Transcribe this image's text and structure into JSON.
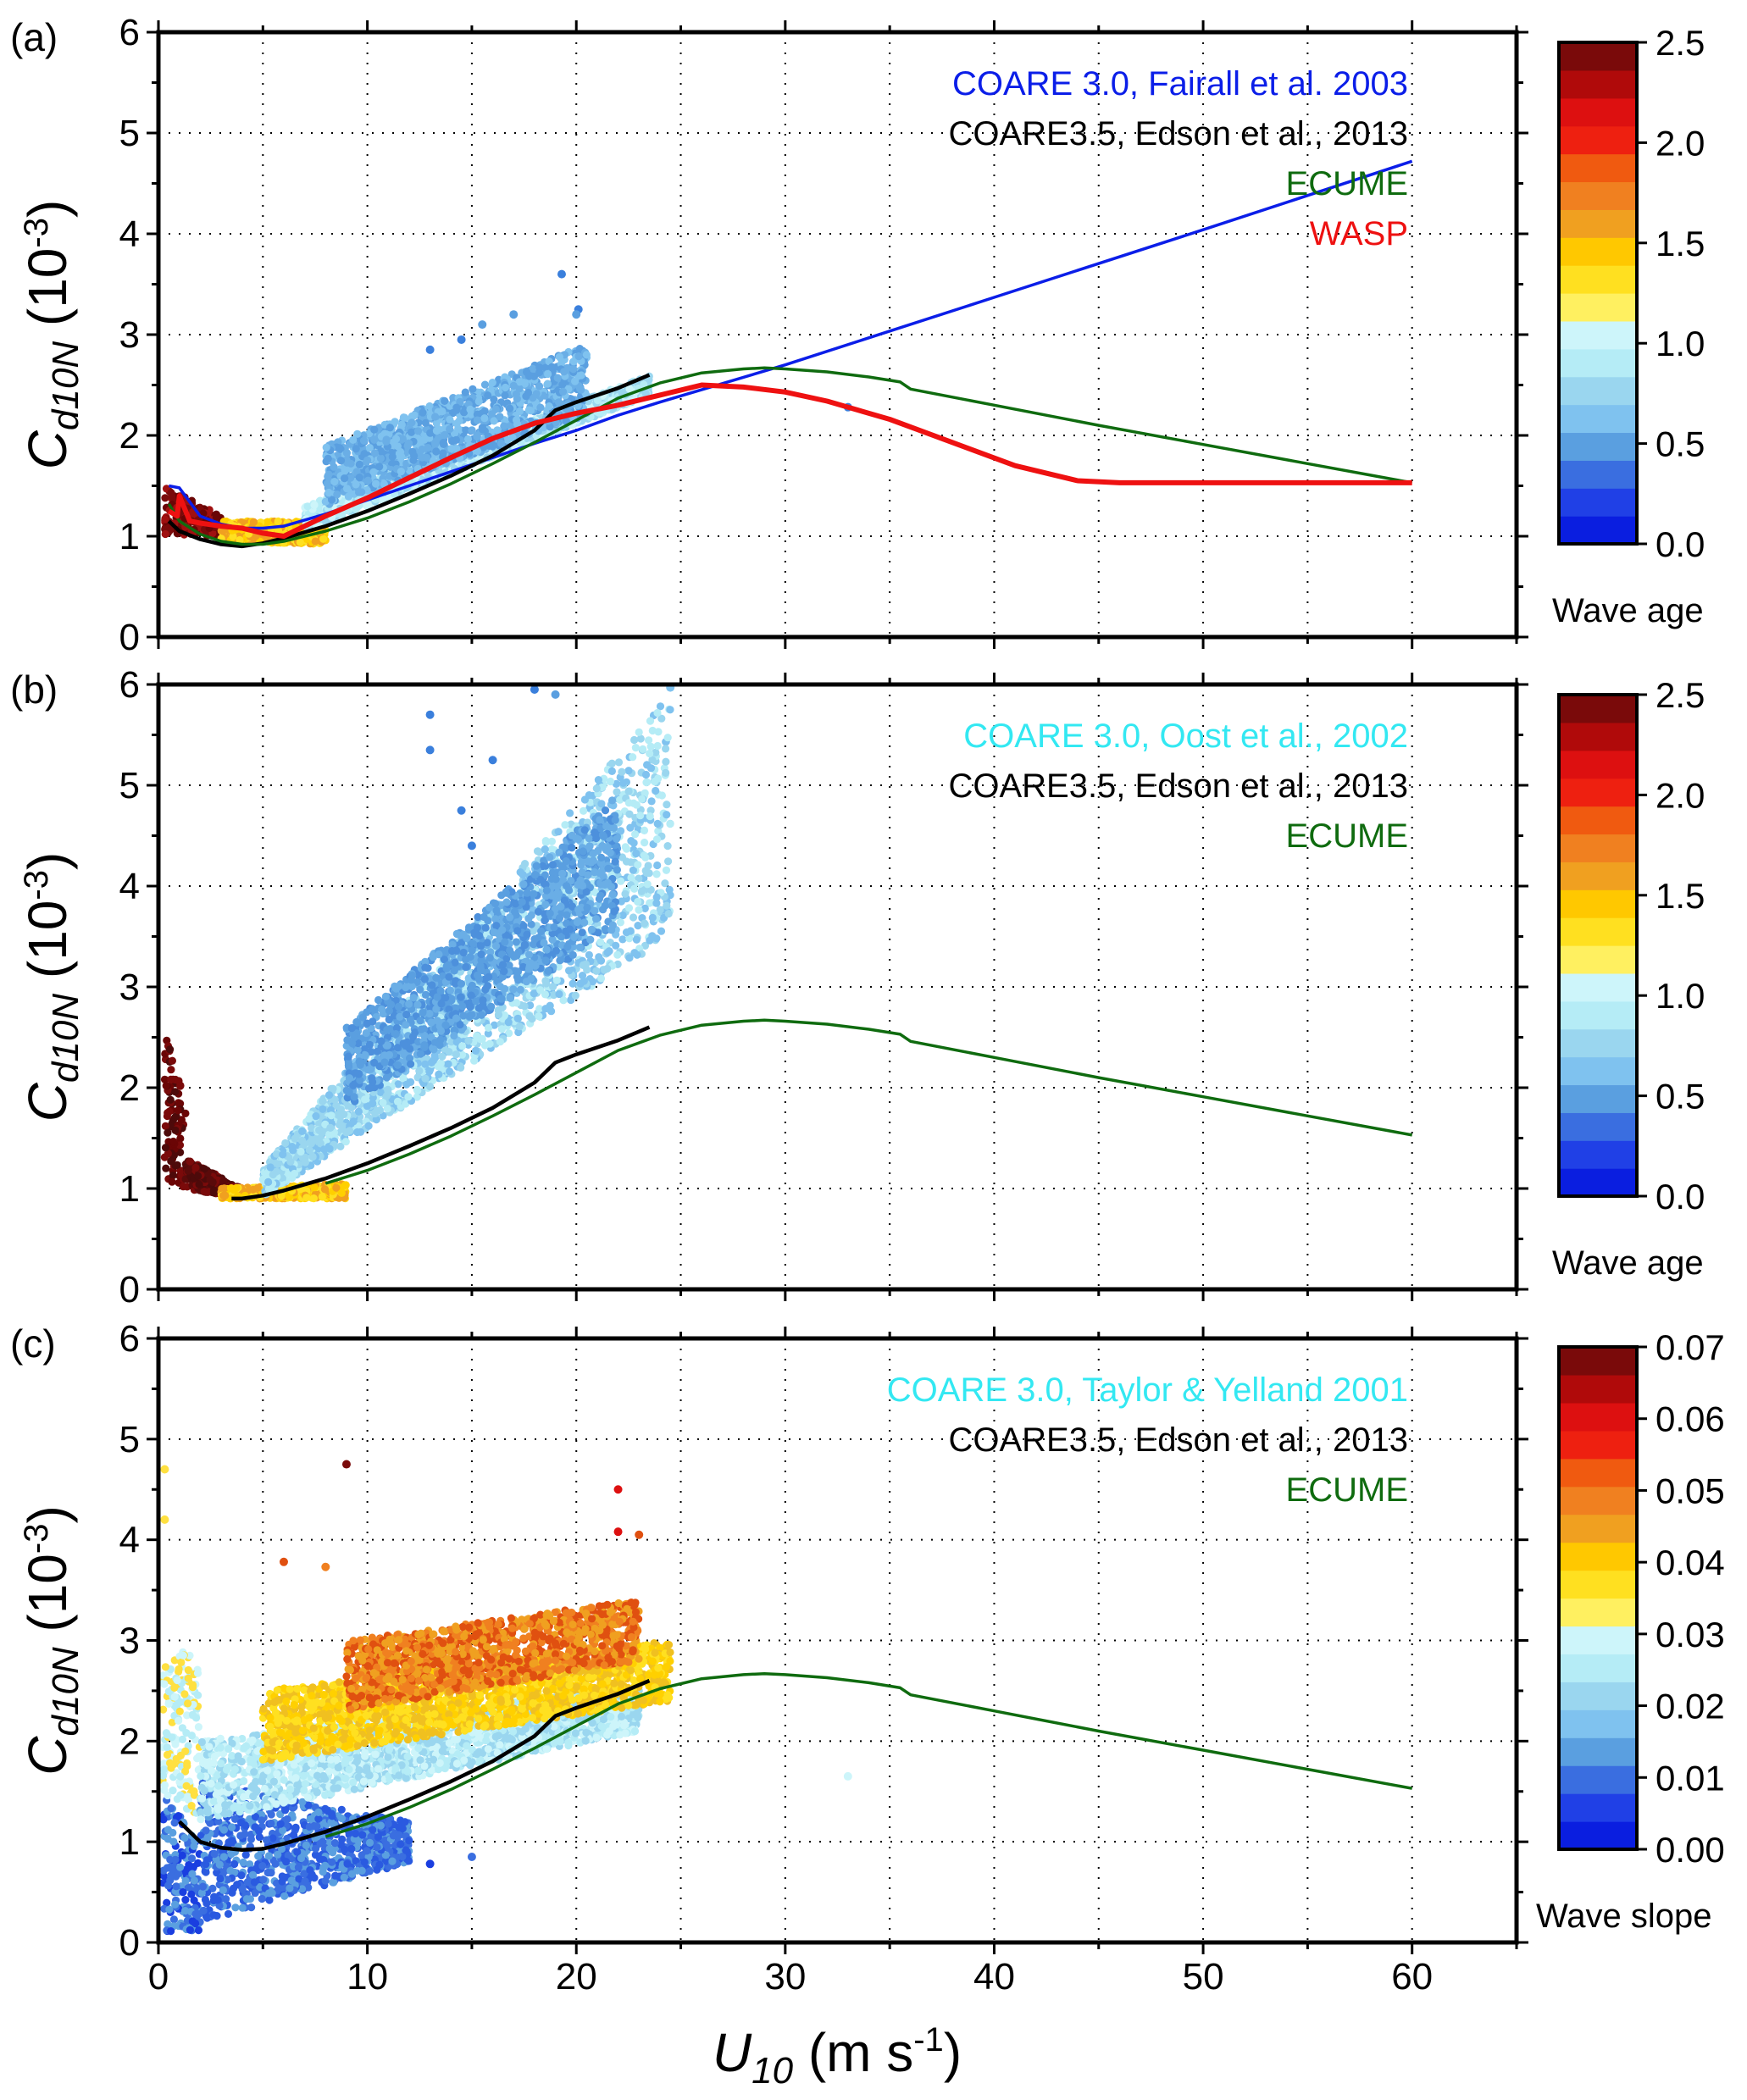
{
  "figure": {
    "x_axis_label": "U",
    "x_axis_label_sub": "10",
    "x_axis_label_units_pre": " (m s",
    "x_axis_label_units_sup": "-1",
    "x_axis_label_units_post": ")",
    "y_axis_label": "C",
    "y_axis_label_sub": "d10N",
    "y_axis_label_units_pre": " (10",
    "y_axis_label_units_sup": "-3",
    "y_axis_label_units_post": ")",
    "x_ticks": [
      "0",
      "10",
      "20",
      "30",
      "40",
      "50",
      "60"
    ],
    "y_ticks": [
      "0",
      "1",
      "2",
      "3",
      "4",
      "5",
      "6"
    ]
  },
  "chart_data": [
    {
      "panel": "(a)",
      "type": "scatter",
      "xlim": [
        0,
        65
      ],
      "ylim": [
        0,
        6
      ],
      "grid": true,
      "legend": [
        {
          "label": "COARE 3.0, Fairall et al. 2003",
          "color": "#0b1ee8"
        },
        {
          "label": "COARE3.5, Edson et al., 2013",
          "color": "#000000"
        },
        {
          "label": "ECUME",
          "color": "#0f6b0f"
        },
        {
          "label": "WASP",
          "color": "#ee1111"
        }
      ],
      "colorbar": {
        "label": "Wave age",
        "range": [
          0,
          2.5
        ],
        "ticks": [
          "0.0",
          "0.5",
          "1.0",
          "1.5",
          "2.0",
          "2.5"
        ]
      },
      "scatter_clouds": [
        {
          "x_range": [
            0.3,
            3.0
          ],
          "lower": [
            1.02,
            1.0
          ],
          "upper": [
            1.5,
            1.2
          ],
          "colors": [
            "#7a0a0a",
            "#a01010",
            "#6a0505"
          ],
          "note": "calm-wind high wave age"
        },
        {
          "x_range": [
            3.0,
            8.0
          ],
          "lower": [
            0.95,
            0.92
          ],
          "upper": [
            1.15,
            1.15
          ],
          "colors": [
            "#f0a020",
            "#ffe020",
            "#ffd000"
          ]
        },
        {
          "x_range": [
            7.0,
            23.5
          ],
          "lower": [
            1.05,
            2.4
          ],
          "upper": [
            1.3,
            2.6
          ],
          "colors": [
            "#b5ecf6",
            "#cdf5fa",
            "#9ad6ef"
          ]
        },
        {
          "x_range": [
            8.0,
            20.5
          ],
          "lower": [
            1.3,
            2.2
          ],
          "upper": [
            1.9,
            2.9
          ],
          "colors": [
            "#6aaee6",
            "#5a9fe0",
            "#7fc2ef"
          ]
        }
      ],
      "scatter_outliers": [
        {
          "x": 19.3,
          "y": 3.6,
          "color": "#3a7fdc"
        },
        {
          "x": 20.1,
          "y": 3.25,
          "color": "#3a7fdc"
        },
        {
          "x": 20.0,
          "y": 3.2,
          "color": "#5a9fe0"
        },
        {
          "x": 17.0,
          "y": 3.2,
          "color": "#5a9fe0"
        },
        {
          "x": 14.5,
          "y": 2.95,
          "color": "#3a7fdc"
        },
        {
          "x": 15.5,
          "y": 3.1,
          "color": "#5a9fe0"
        },
        {
          "x": 13.0,
          "y": 2.85,
          "color": "#3a7fdc"
        },
        {
          "x": 33.0,
          "y": 2.28,
          "color": "#3a7fdc"
        }
      ],
      "series": [
        {
          "name": "COARE 3.0, Fairall et al. 2003",
          "color": "#0b1ee8",
          "x": [
            0.5,
            1,
            2,
            3,
            4,
            5,
            6,
            8,
            10,
            12,
            14,
            16,
            18,
            20,
            22,
            24,
            30,
            40,
            50,
            60
          ],
          "y": [
            1.5,
            1.48,
            1.2,
            1.12,
            1.08,
            1.08,
            1.1,
            1.22,
            1.36,
            1.5,
            1.64,
            1.78,
            1.92,
            2.05,
            2.2,
            2.33,
            2.7,
            3.37,
            4.04,
            4.72
          ]
        },
        {
          "name": "COARE3.5, Edson et al., 2013",
          "color": "#000000",
          "x": [
            0.5,
            1,
            2,
            3,
            4,
            5,
            6,
            8,
            10,
            12,
            14,
            16,
            18,
            19,
            20,
            22,
            23.5
          ],
          "y": [
            1.15,
            1.05,
            0.97,
            0.92,
            0.9,
            0.93,
            0.98,
            1.1,
            1.25,
            1.42,
            1.6,
            1.8,
            2.05,
            2.25,
            2.33,
            2.47,
            2.6
          ]
        },
        {
          "name": "ECUME",
          "color": "#0f6b0f",
          "x": [
            0.5,
            1,
            2,
            3,
            4,
            5,
            6,
            8,
            10,
            12,
            14,
            16,
            18,
            20,
            22,
            24,
            26,
            28,
            29,
            30,
            32,
            34,
            35.5,
            36,
            40,
            45,
            50,
            55,
            60
          ],
          "y": [
            1.32,
            1.15,
            1.02,
            0.95,
            0.92,
            0.92,
            0.95,
            1.05,
            1.18,
            1.34,
            1.52,
            1.72,
            1.93,
            2.15,
            2.37,
            2.52,
            2.62,
            2.66,
            2.67,
            2.66,
            2.63,
            2.58,
            2.53,
            2.46,
            2.3,
            2.1,
            1.91,
            1.72,
            1.53
          ]
        },
        {
          "name": "WASP",
          "color": "#ee1111",
          "x": [
            0.5,
            0.9,
            1.0,
            1.5,
            2,
            3,
            4,
            5,
            6,
            7,
            8,
            10,
            12,
            14,
            16,
            18,
            20,
            22,
            24,
            26,
            28,
            30,
            32,
            35,
            38,
            41,
            44,
            46,
            50,
            55,
            60
          ],
          "y": [
            1.25,
            1.2,
            1.4,
            1.15,
            1.13,
            1.1,
            1.08,
            1.03,
            1.0,
            1.1,
            1.2,
            1.38,
            1.58,
            1.78,
            1.97,
            2.12,
            2.22,
            2.3,
            2.4,
            2.5,
            2.48,
            2.43,
            2.34,
            2.16,
            1.93,
            1.7,
            1.55,
            1.53,
            1.53,
            1.53,
            1.53
          ]
        }
      ]
    },
    {
      "panel": "(b)",
      "type": "scatter",
      "xlim": [
        0,
        65
      ],
      "ylim": [
        0,
        6
      ],
      "grid": true,
      "legend": [
        {
          "label": "COARE 3.0, Oost et al., 2002",
          "color": "#33e8f2"
        },
        {
          "label": "COARE3.5, Edson et al., 2013",
          "color": "#000000"
        },
        {
          "label": "ECUME",
          "color": "#0f6b0f"
        }
      ],
      "colorbar": {
        "label": "Wave age",
        "range": [
          0,
          2.5
        ],
        "ticks": [
          "0.0",
          "0.5",
          "1.0",
          "1.5",
          "2.0",
          "2.5"
        ]
      },
      "scatter_clouds": [
        {
          "x_range": [
            0.3,
            1.3
          ],
          "lower": [
            1.1,
            1.0
          ],
          "upper": [
            2.55,
            1.9
          ],
          "colors": [
            "#6a0505",
            "#7a0a0a",
            "#4d0a0a"
          ]
        },
        {
          "x_range": [
            1.3,
            4.0
          ],
          "lower": [
            1.0,
            0.9
          ],
          "upper": [
            1.3,
            1.0
          ],
          "colors": [
            "#5a0a0a",
            "#7a0a0a",
            "#4d0a0a"
          ]
        },
        {
          "x_range": [
            3.0,
            9.0
          ],
          "lower": [
            0.9,
            0.9
          ],
          "upper": [
            1.0,
            1.05
          ],
          "colors": [
            "#f0a020",
            "#ffe020",
            "#ffd000"
          ]
        },
        {
          "x_range": [
            5.0,
            24.5
          ],
          "lower": [
            0.92,
            3.5
          ],
          "upper": [
            1.2,
            5.9
          ],
          "colors": [
            "#b5ecf6",
            "#9ad6ef",
            "#7fc2ef"
          ]
        },
        {
          "x_range": [
            9.0,
            22.0
          ],
          "lower": [
            1.8,
            3.6
          ],
          "upper": [
            2.6,
            4.9
          ],
          "colors": [
            "#5a9fe0",
            "#6aaee6",
            "#4d90dc"
          ]
        }
      ],
      "scatter_outliers": [
        {
          "x": 13.0,
          "y": 5.7,
          "color": "#3a7fdc"
        },
        {
          "x": 13.0,
          "y": 5.35,
          "color": "#3a7fdc"
        },
        {
          "x": 18.0,
          "y": 5.95,
          "color": "#3a7fdc"
        },
        {
          "x": 19.0,
          "y": 5.9,
          "color": "#5a9fe0"
        },
        {
          "x": 24.5,
          "y": 5.97,
          "color": "#7fc2ef"
        },
        {
          "x": 16.0,
          "y": 5.25,
          "color": "#3a7fdc"
        },
        {
          "x": 14.5,
          "y": 4.75,
          "color": "#3a7fdc"
        },
        {
          "x": 15.0,
          "y": 4.4,
          "color": "#3a7fdc"
        }
      ],
      "series": [
        {
          "name": "COARE3.5, Edson et al., 2013",
          "color": "#000000",
          "x": [
            3.5,
            4,
            5,
            6,
            8,
            10,
            12,
            14,
            16,
            18,
            19,
            20,
            22,
            23.5
          ],
          "y": [
            0.9,
            0.9,
            0.93,
            0.98,
            1.1,
            1.25,
            1.42,
            1.6,
            1.8,
            2.05,
            2.25,
            2.33,
            2.47,
            2.6
          ]
        },
        {
          "name": "ECUME",
          "color": "#0f6b0f",
          "x": [
            8,
            10,
            12,
            14,
            16,
            18,
            20,
            22,
            24,
            26,
            28,
            29,
            30,
            32,
            34,
            35.5,
            36,
            40,
            45,
            50,
            55,
            60
          ],
          "y": [
            1.05,
            1.18,
            1.34,
            1.52,
            1.72,
            1.93,
            2.15,
            2.37,
            2.52,
            2.62,
            2.66,
            2.67,
            2.66,
            2.63,
            2.58,
            2.53,
            2.46,
            2.3,
            2.1,
            1.91,
            1.72,
            1.53
          ]
        }
      ]
    },
    {
      "panel": "(c)",
      "type": "scatter",
      "xlim": [
        0,
        65
      ],
      "ylim": [
        0,
        6
      ],
      "grid": true,
      "legend": [
        {
          "label": "COARE 3.0, Taylor & Yelland 2001",
          "color": "#33e8f2"
        },
        {
          "label": "COARE3.5, Edson et al., 2013",
          "color": "#000000"
        },
        {
          "label": "ECUME",
          "color": "#0f6b0f"
        }
      ],
      "colorbar": {
        "label": "Wave slope",
        "range": [
          0,
          0.07
        ],
        "ticks": [
          "0.00",
          "0.01",
          "0.02",
          "0.03",
          "0.04",
          "0.05",
          "0.06",
          "0.07"
        ]
      },
      "scatter_clouds": [
        {
          "x_range": [
            0.2,
            2.0
          ],
          "lower": [
            0.1,
            0.1
          ],
          "upper": [
            1.5,
            1.0
          ],
          "colors": [
            "#1a3ee0",
            "#3a6ee0",
            "#5a9fe0"
          ]
        },
        {
          "x_range": [
            0.2,
            2.0
          ],
          "lower": [
            1.5,
            1.2
          ],
          "upper": [
            3.0,
            2.8
          ],
          "colors": [
            "#b5ecf6",
            "#ffe040",
            "#cdf5fa"
          ]
        },
        {
          "x_range": [
            2.0,
            12.0
          ],
          "lower": [
            0.2,
            0.8
          ],
          "upper": [
            1.6,
            1.2
          ],
          "colors": [
            "#2a5ae0",
            "#5a9fe0",
            "#3a6ee0"
          ]
        },
        {
          "x_range": [
            2.0,
            23.0
          ],
          "lower": [
            1.2,
            2.1
          ],
          "upper": [
            2.0,
            2.55
          ],
          "colors": [
            "#b5ecf6",
            "#9ad6ef",
            "#cdf5fa"
          ]
        },
        {
          "x_range": [
            5.0,
            24.5
          ],
          "lower": [
            1.8,
            2.4
          ],
          "upper": [
            2.5,
            3.0
          ],
          "colors": [
            "#ffd000",
            "#ffe020",
            "#f0c020"
          ]
        },
        {
          "x_range": [
            9.0,
            23.0
          ],
          "lower": [
            2.3,
            2.8
          ],
          "upper": [
            3.0,
            3.4
          ],
          "colors": [
            "#f08020",
            "#e05010",
            "#f0a020"
          ]
        }
      ],
      "scatter_outliers": [
        {
          "x": 9.0,
          "y": 4.75,
          "color": "#7a0a0a"
        },
        {
          "x": 22.0,
          "y": 4.5,
          "color": "#dd1010"
        },
        {
          "x": 22.0,
          "y": 4.08,
          "color": "#dd1010"
        },
        {
          "x": 23.0,
          "y": 4.05,
          "color": "#e05010"
        },
        {
          "x": 0.3,
          "y": 4.7,
          "color": "#ffe040"
        },
        {
          "x": 0.3,
          "y": 4.2,
          "color": "#ffe040"
        },
        {
          "x": 6.0,
          "y": 3.78,
          "color": "#e05010"
        },
        {
          "x": 8.0,
          "y": 3.73,
          "color": "#f08020"
        },
        {
          "x": 13.0,
          "y": 0.78,
          "color": "#1a3ee0"
        },
        {
          "x": 15.0,
          "y": 0.85,
          "color": "#3a6ee0"
        },
        {
          "x": 33.0,
          "y": 1.65,
          "color": "#cdf5fa"
        }
      ],
      "series": [
        {
          "name": "COARE3.5, Edson et al., 2013",
          "color": "#000000",
          "x": [
            1.0,
            2,
            3,
            4,
            5,
            6,
            8,
            10,
            12,
            14,
            16,
            18,
            19,
            20,
            22,
            23.5
          ],
          "y": [
            1.2,
            1.0,
            0.94,
            0.92,
            0.93,
            0.98,
            1.1,
            1.25,
            1.42,
            1.6,
            1.8,
            2.05,
            2.25,
            2.33,
            2.47,
            2.6
          ]
        },
        {
          "name": "ECUME",
          "color": "#0f6b0f",
          "x": [
            8,
            10,
            12,
            14,
            16,
            18,
            20,
            22,
            24,
            26,
            28,
            29,
            30,
            32,
            34,
            35.5,
            36,
            40,
            45,
            50,
            55,
            60
          ],
          "y": [
            1.05,
            1.18,
            1.34,
            1.52,
            1.72,
            1.93,
            2.15,
            2.37,
            2.52,
            2.62,
            2.66,
            2.67,
            2.66,
            2.63,
            2.58,
            2.53,
            2.46,
            2.3,
            2.1,
            1.91,
            1.72,
            1.53
          ]
        }
      ]
    }
  ]
}
